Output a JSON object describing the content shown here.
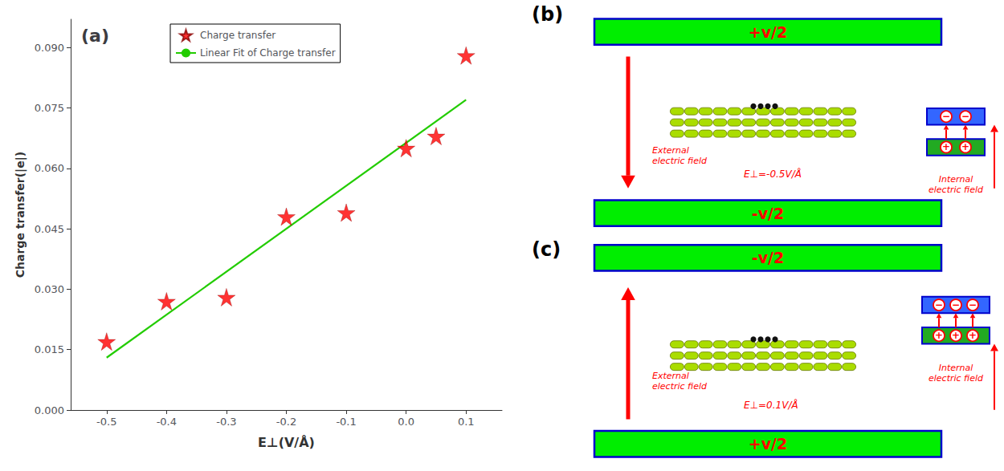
{
  "chart_data": {
    "type": "scatter",
    "title": "(a)",
    "x_label": "E⊥(V/Å)",
    "y_label": "Charge transfer(|e|)",
    "series": [
      {
        "name": "Charge transfer",
        "type": "scatter",
        "marker": "star",
        "color": "#FF0000",
        "x": [
          -0.5,
          -0.4,
          -0.3,
          -0.2,
          -0.1,
          0.0,
          0.05,
          0.1
        ],
        "values": [
          0.017,
          0.027,
          0.028,
          0.048,
          0.049,
          0.065,
          0.068,
          0.088
        ]
      },
      {
        "name": "Linear Fit of Charge transfer",
        "type": "line",
        "line_style": "solid",
        "color": "#22CC00",
        "x": [
          -0.5,
          0.1
        ],
        "values": [
          0.013,
          0.077
        ]
      }
    ],
    "xlim": [
      -0.56,
      0.16
    ],
    "ylim": [
      0.0,
      0.097
    ],
    "xticks": [
      -0.5,
      -0.4,
      -0.3,
      -0.2,
      -0.1,
      {
        "value": 0.0,
        "label": "0.0"
      },
      0.1
    ],
    "yticks": [
      {
        "value": 0.0,
        "label": "0.000"
      },
      0.015,
      {
        "value": 0.03,
        "label": "0.030"
      },
      0.045,
      {
        "value": 0.06,
        "label": "0.060"
      },
      0.075,
      {
        "value": 0.09,
        "label": "0.090"
      }
    ],
    "grid": false,
    "legend": "upper left",
    "diagram_colors": {
      "bar": "#00EE00",
      "bar_edge": "#0000CC",
      "minus_plate": "#3366FF",
      "plus_plate": "#22AA22",
      "text": "#FF0000",
      "layer": "#AADD00",
      "layer_edge": "#667700",
      "molecule": "#111111",
      "charge_fill": "#FFFFFF"
    },
    "annotations": [
      {
        "title": "(b)",
        "top_plate": "+v/2",
        "bottom_plate": "-v/2",
        "external_field": "External\nelectric field",
        "external_field_direction": "down",
        "field": "E⊥=-0.5V/Å",
        "internal_field": "Internal\nelectric field",
        "charges": 2,
        "charge_labels": [
          "+",
          "−"
        ]
      },
      {
        "title": "(c)",
        "top_plate": "-v/2",
        "bottom_plate": "+v/2",
        "external_field": "External\nelectric field",
        "external_field_direction": "up",
        "field": "E⊥=0.1V/Å",
        "internal_field": "Internal\nelectric field",
        "charges": 3,
        "charge_labels": [
          "+",
          "−"
        ]
      }
    ]
  }
}
